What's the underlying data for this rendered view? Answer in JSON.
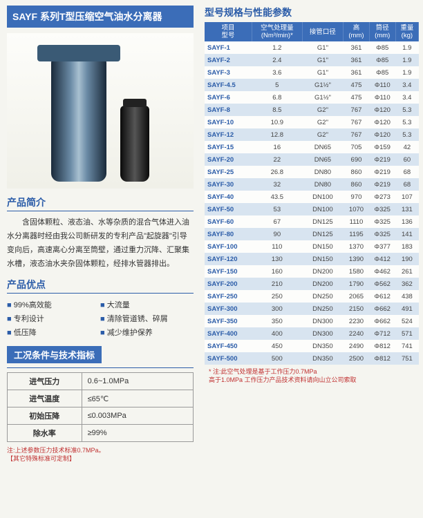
{
  "title": "SAYF 系列T型压缩空气油水分离器",
  "intro_heading": "产品简介",
  "intro_text": "含固体颗粒、液态油、水等杂质的混合气体进入油水分离器时经由我公司新研发的专利产品\"起旋器\"引导变向后，高速离心分离至筒壁，通过重力沉降、汇聚集水槽，液态油水夹杂固体颗粒，经排水管器排出。",
  "adv_heading": "产品优点",
  "advantages": [
    "99%高效能",
    "大流量",
    "专利设计",
    "清除管道锈、碎屑",
    "低压降",
    "减少维护保养"
  ],
  "tech_heading": "工况条件与技术指标",
  "tech_rows": [
    {
      "k": "进气压力",
      "v": "0.6~1.0MPa"
    },
    {
      "k": "进气温度",
      "v": "≤65℃"
    },
    {
      "k": "初始压降",
      "v": "≤0.003MPa"
    },
    {
      "k": "除水率",
      "v": "≥99%"
    }
  ],
  "note_left_1": "注:上述参数压力技术标准0.7MPa。",
  "note_left_2": "【其它特殊标准可定制】",
  "right_heading": "型号规格与性能参数",
  "spec_headers": [
    {
      "l1": "项目",
      "l2": "型号"
    },
    {
      "l1": "空气处理量",
      "l2": "(Nm³/min)*"
    },
    {
      "l1": "接管口径",
      "l2": ""
    },
    {
      "l1": "高",
      "l2": "(mm)"
    },
    {
      "l1": "筒径",
      "l2": "(mm)"
    },
    {
      "l1": "重量",
      "l2": "(kg)"
    }
  ],
  "spec_rows": [
    [
      "SAYF-1",
      "1.2",
      "G1\"",
      "361",
      "Φ85",
      "1.9"
    ],
    [
      "SAYF-2",
      "2.4",
      "G1\"",
      "361",
      "Φ85",
      "1.9"
    ],
    [
      "SAYF-3",
      "3.6",
      "G1\"",
      "361",
      "Φ85",
      "1.9"
    ],
    [
      "SAYF-4.5",
      "5",
      "G1½\"",
      "475",
      "Φ110",
      "3.4"
    ],
    [
      "SAYF-6",
      "6.8",
      "G1½\"",
      "475",
      "Φ110",
      "3.4"
    ],
    [
      "SAYF-8",
      "8.5",
      "G2\"",
      "767",
      "Φ120",
      "5.3"
    ],
    [
      "SAYF-10",
      "10.9",
      "G2\"",
      "767",
      "Φ120",
      "5.3"
    ],
    [
      "SAYF-12",
      "12.8",
      "G2\"",
      "767",
      "Φ120",
      "5.3"
    ],
    [
      "SAYF-15",
      "16",
      "DN65",
      "705",
      "Φ159",
      "42"
    ],
    [
      "SAYF-20",
      "22",
      "DN65",
      "690",
      "Φ219",
      "60"
    ],
    [
      "SAYF-25",
      "26.8",
      "DN80",
      "860",
      "Φ219",
      "68"
    ],
    [
      "SAYF-30",
      "32",
      "DN80",
      "860",
      "Φ219",
      "68"
    ],
    [
      "SAYF-40",
      "43.5",
      "DN100",
      "970",
      "Φ273",
      "107"
    ],
    [
      "SAYF-50",
      "53",
      "DN100",
      "1070",
      "Φ325",
      "131"
    ],
    [
      "SAYF-60",
      "67",
      "DN125",
      "1110",
      "Φ325",
      "136"
    ],
    [
      "SAYF-80",
      "90",
      "DN125",
      "1195",
      "Φ325",
      "141"
    ],
    [
      "SAYF-100",
      "110",
      "DN150",
      "1370",
      "Φ377",
      "183"
    ],
    [
      "SAYF-120",
      "130",
      "DN150",
      "1390",
      "Φ412",
      "190"
    ],
    [
      "SAYF-150",
      "160",
      "DN200",
      "1580",
      "Φ462",
      "261"
    ],
    [
      "SAYF-200",
      "210",
      "DN200",
      "1790",
      "Φ562",
      "362"
    ],
    [
      "SAYF-250",
      "250",
      "DN250",
      "2065",
      "Φ612",
      "438"
    ],
    [
      "SAYF-300",
      "300",
      "DN250",
      "2150",
      "Φ662",
      "491"
    ],
    [
      "SAYF-350",
      "350",
      "DN300",
      "2230",
      "Φ662",
      "524"
    ],
    [
      "SAYF-400",
      "400",
      "DN300",
      "2240",
      "Φ712",
      "571"
    ],
    [
      "SAYF-450",
      "450",
      "DN350",
      "2490",
      "Φ812",
      "741"
    ],
    [
      "SAYF-500",
      "500",
      "DN350",
      "2500",
      "Φ812",
      "751"
    ]
  ],
  "note_right_1": "* 注:此空气处理是基于工作压力0.7MPa",
  "note_right_2": "高于1.0MPa 工作压力产品技术资料请向山立公司索取"
}
